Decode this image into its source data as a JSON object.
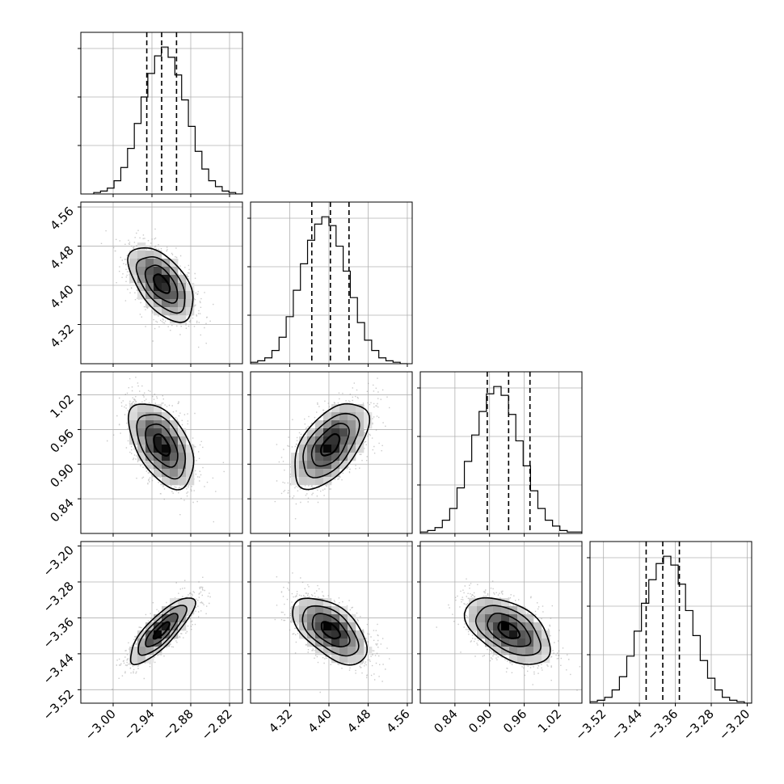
{
  "chart_data": {
    "type": "corner",
    "parameters": 4,
    "grid": true,
    "colors": {
      "line": "#000000",
      "grid": "#b0b0b0",
      "scatter": "#8a8a8a",
      "density_high": "#000000",
      "density_low": "#ffffff"
    },
    "axes": [
      {
        "range": [
          -3.05,
          -2.8
        ],
        "ticks": [
          -3.0,
          -2.94,
          -2.88,
          -2.82
        ],
        "tick_labels": [
          "−3.00",
          "−2.94",
          "−2.88",
          "−2.82"
        ]
      },
      {
        "range": [
          4.24,
          4.57
        ],
        "ticks": [
          4.32,
          4.4,
          4.48,
          4.56
        ],
        "tick_labels": [
          "4.32",
          "4.40",
          "4.48",
          "4.56"
        ]
      },
      {
        "range": [
          0.78,
          1.06
        ],
        "ticks": [
          0.84,
          0.9,
          0.96,
          1.02
        ],
        "tick_labels": [
          "0.84",
          "0.90",
          "0.96",
          "1.02"
        ]
      },
      {
        "range": [
          -3.55,
          -3.19
        ],
        "ticks": [
          -3.52,
          -3.44,
          -3.36,
          -3.28,
          -3.2
        ],
        "tick_labels": [
          "−3.52",
          "−3.44",
          "−3.36",
          "−3.28",
          "−3.20"
        ]
      }
    ],
    "marginals": [
      {
        "parameter": 0,
        "bin_edges": [
          -3.03,
          -2.8
        ],
        "counts": [
          1,
          2,
          4,
          9,
          18,
          31,
          48,
          66,
          82,
          94,
          100,
          93,
          81,
          64,
          46,
          29,
          17,
          9,
          5,
          2,
          1,
          0
        ],
        "quantiles": [
          -2.948,
          -2.925,
          -2.902
        ]
      },
      {
        "parameter": 1,
        "bin_edges": [
          4.24,
          4.56
        ],
        "counts": [
          1,
          2,
          4,
          9,
          18,
          32,
          50,
          68,
          84,
          95,
          100,
          94,
          80,
          63,
          45,
          28,
          16,
          9,
          4,
          2,
          1,
          0
        ],
        "quantiles": [
          4.365,
          4.403,
          4.441
        ]
      },
      {
        "parameter": 2,
        "bin_edges": [
          0.78,
          1.06
        ],
        "counts": [
          1,
          2,
          4,
          9,
          17,
          31,
          49,
          67,
          83,
          95,
          100,
          94,
          81,
          63,
          46,
          29,
          17,
          9,
          5,
          2,
          1,
          1
        ],
        "quantiles": [
          0.896,
          0.933,
          0.97
        ]
      },
      {
        "parameter": 3,
        "bin_edges": [
          -3.55,
          -3.19
        ],
        "counts": [
          1,
          2,
          4,
          9,
          18,
          32,
          49,
          68,
          84,
          95,
          100,
          94,
          81,
          63,
          46,
          29,
          17,
          9,
          4,
          2,
          1,
          0
        ],
        "quantiles": [
          -3.425,
          -3.388,
          -3.351
        ]
      }
    ],
    "joint": [
      {
        "x": 0,
        "y": 1,
        "mean": [
          -2.925,
          4.403
        ],
        "sd": [
          0.025,
          0.038
        ],
        "corr": -0.55
      },
      {
        "x": 0,
        "y": 2,
        "mean": [
          -2.925,
          0.933
        ],
        "sd": [
          0.025,
          0.037
        ],
        "corr": -0.5
      },
      {
        "x": 1,
        "y": 2,
        "mean": [
          4.403,
          0.933
        ],
        "sd": [
          0.038,
          0.037
        ],
        "corr": 0.55
      },
      {
        "x": 0,
        "y": 3,
        "mean": [
          -2.925,
          -3.388
        ],
        "sd": [
          0.025,
          0.037
        ],
        "corr": 0.82
      },
      {
        "x": 1,
        "y": 3,
        "mean": [
          4.403,
          -3.388
        ],
        "sd": [
          0.038,
          0.037
        ],
        "corr": -0.55
      },
      {
        "x": 2,
        "y": 3,
        "mean": [
          0.933,
          -3.388
        ],
        "sd": [
          0.037,
          0.037
        ],
        "corr": -0.5
      }
    ],
    "contour_levels_sigma": [
      0.5,
      1.0,
      1.5,
      2.0
    ]
  }
}
